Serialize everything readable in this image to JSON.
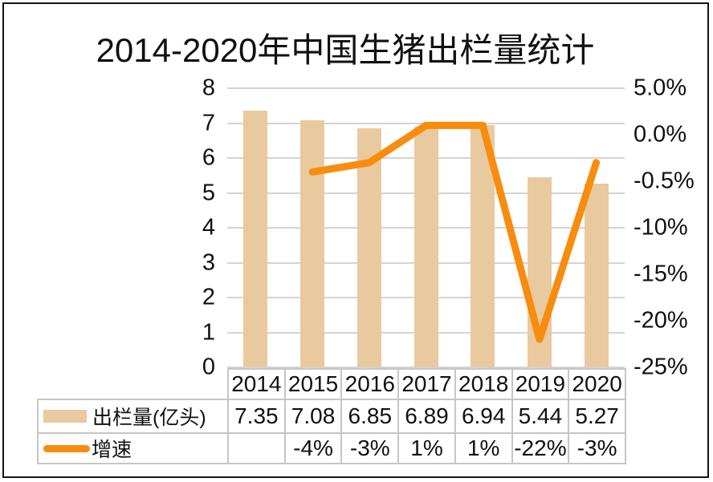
{
  "title": "2014-2020年中国生猪出栏量统计",
  "colors": {
    "bar": "#e9c99e",
    "line": "#f78c0e",
    "grid": "#d4d4d4",
    "table_border": "#c6c6c6",
    "text": "#111111",
    "frame": "#141414",
    "background": "#ffffff"
  },
  "chart_data": {
    "type": "combo-bar-line",
    "title": "2014-2020年中国生猪出栏量统计",
    "categories": [
      "2014",
      "2015",
      "2016",
      "2017",
      "2018",
      "2019",
      "2020"
    ],
    "series": [
      {
        "name": "出栏量(亿头)",
        "type": "bar",
        "axis": "left",
        "values": [
          7.35,
          7.08,
          6.85,
          6.89,
          6.94,
          5.44,
          5.27
        ]
      },
      {
        "name": "增速",
        "type": "line",
        "axis": "right",
        "unit": "%",
        "values": [
          null,
          -4,
          -3,
          1,
          1,
          -22,
          -3
        ]
      }
    ],
    "left_axis": {
      "min": 0,
      "max": 8,
      "ticks": [
        "8",
        "7",
        "6",
        "5",
        "4",
        "3",
        "2",
        "1",
        "0"
      ]
    },
    "right_axis": {
      "min": -25,
      "max": 5,
      "tick_labels": [
        "5.0%",
        "0.0%",
        "-0.5%",
        "-10%",
        "-15%",
        "-20%",
        "-25%"
      ]
    },
    "grid": true,
    "legend_position": "table-left"
  },
  "table": {
    "year_row": [
      "2014",
      "2015",
      "2016",
      "2017",
      "2018",
      "2019",
      "2020"
    ],
    "rows": [
      {
        "label": "出栏量(亿头)",
        "swatch": "bar",
        "cells": [
          "7.35",
          "7.08",
          "6.85",
          "6.89",
          "6.94",
          "5.44",
          "5.27"
        ]
      },
      {
        "label": "增速",
        "swatch": "line",
        "cells": [
          "",
          "-4%",
          "-3%",
          "1%",
          "1%",
          "-22%",
          "-3%"
        ]
      }
    ]
  }
}
